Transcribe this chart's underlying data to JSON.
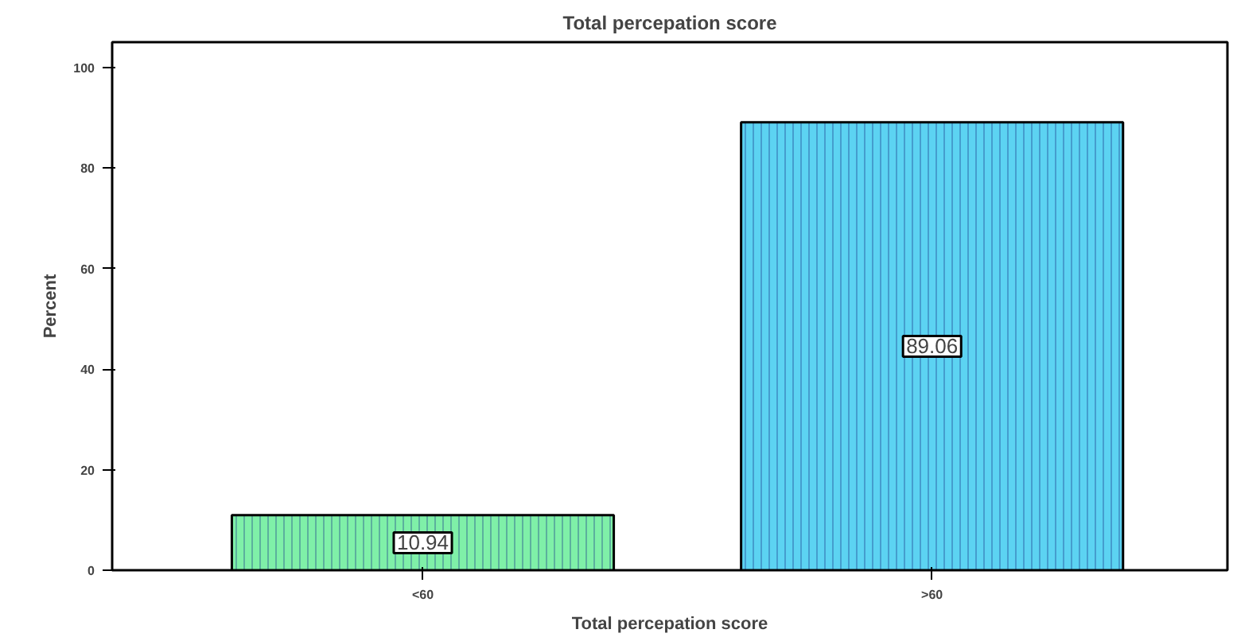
{
  "chart_data": {
    "type": "bar",
    "title": "Total percepation score",
    "xlabel": "Total percepation score",
    "ylabel": "Percent",
    "categories": [
      "<60",
      ">60"
    ],
    "values": [
      10.94,
      89.06
    ],
    "colors": [
      "#7ff0a8",
      "#5cd3f2"
    ],
    "ylim": [
      0,
      105
    ],
    "yticks": [
      0,
      20,
      40,
      60,
      80,
      100
    ],
    "grid": false,
    "data_labels": true
  }
}
